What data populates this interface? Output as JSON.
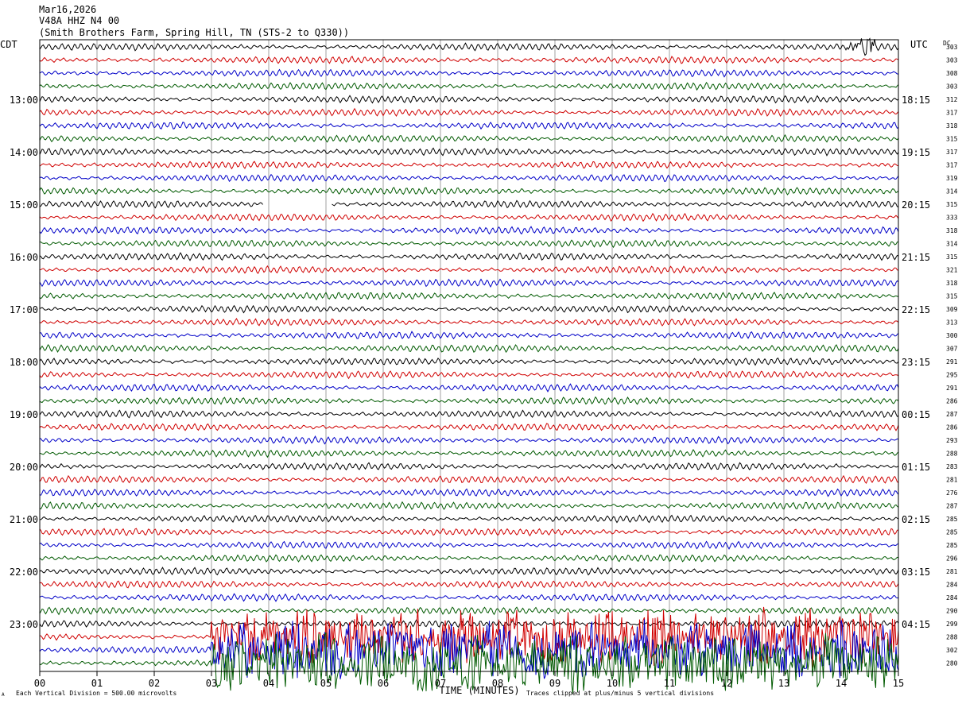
{
  "header": {
    "date": "Mar16,2026",
    "station": "V48A HHZ N4 00",
    "location": "(Smith Brothers Farm, Spring Hill, TN (STS-2 to Q330))"
  },
  "left_axis_label": "CDT",
  "right_axis_label": "UTC",
  "dc_label": "DC",
  "footer": {
    "scale_note": "Each Vertical Division =  500.00 microvolts",
    "clip_note": "Traces clipped at plus/minus 5 vertical divisions",
    "corner_mark": "A"
  },
  "colors": {
    "trace_cycle": [
      "#000000",
      "#d00000",
      "#0000c8",
      "#005a00"
    ],
    "grid": "#a0a0a0",
    "frame": "#000000"
  },
  "chart_data": {
    "type": "line",
    "title": "Mar16,2026",
    "xlabel": "TIME (MINUTES)",
    "ylabel": "",
    "xlim": [
      0,
      15
    ],
    "x_ticks": [
      "00",
      "01",
      "02",
      "03",
      "04",
      "05",
      "06",
      "07",
      "08",
      "09",
      "10",
      "11",
      "12",
      "13",
      "14",
      "15"
    ],
    "rows_per_hour": 4,
    "minutes_per_row": 15,
    "left_hour_labels": [
      "13:00",
      "14:00",
      "15:00",
      "16:00",
      "17:00",
      "18:00",
      "19:00",
      "20:00",
      "21:00",
      "22:00",
      "23:00"
    ],
    "right_hour_labels": [
      "18:15",
      "19:15",
      "20:15",
      "21:15",
      "22:15",
      "23:15",
      "00:15",
      "01:15",
      "02:15",
      "03:15",
      "04:15"
    ],
    "first_left_label_row": 4,
    "dc_offsets": [
      303,
      303,
      308,
      303,
      312,
      317,
      318,
      315,
      317,
      317,
      319,
      314,
      315,
      333,
      318,
      314,
      315,
      321,
      318,
      315,
      309,
      313,
      300,
      307,
      291,
      295,
      291,
      286,
      287,
      286,
      293,
      288,
      283,
      281,
      276,
      287,
      285,
      285,
      285,
      296,
      281,
      284,
      284,
      290,
      299,
      288,
      302,
      280
    ],
    "gap": {
      "row": 12,
      "from_minute": 3.9,
      "to_minute": 5.1
    },
    "events": [
      {
        "rows": [
          0
        ],
        "from_minute": 14.1,
        "to_minute": 14.6,
        "amplitude": 1.6
      },
      {
        "rows": [
          45,
          46,
          47
        ],
        "from_minute": 3.0,
        "to_minute": 15.0,
        "amplitude": 5.0
      }
    ]
  }
}
